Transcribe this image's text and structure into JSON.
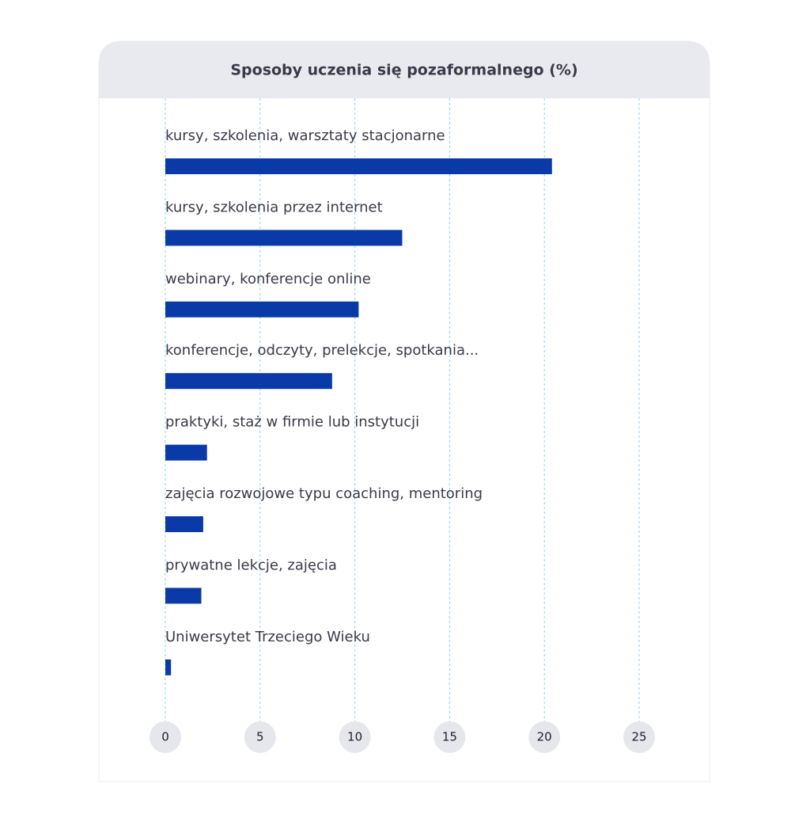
{
  "chart_data": {
    "type": "bar",
    "orientation": "horizontal",
    "title": "Sposoby uczenia się pozaformalnego (%)",
    "categories": [
      "kursy, szkolenia, warsztaty stacjonarne",
      "kursy, szkolenia przez internet",
      "webinary, konferencje online",
      "konferencje, odczyty, prelekcje, spotkania...",
      "praktyki, staż w firmie lub instytucji",
      "zajęcia rozwojowe typu coaching, mentoring",
      "prywatne lekcje, zajęcia",
      "Uniwersytet Trzeciego Wieku"
    ],
    "values": [
      20.4,
      12.5,
      10.2,
      8.8,
      2.2,
      2.0,
      1.9,
      0.3
    ],
    "color": "#0a3aa8",
    "xlim": [
      0,
      25
    ],
    "xticks": [
      0,
      5,
      10,
      15,
      20,
      25
    ],
    "grid": true
  }
}
